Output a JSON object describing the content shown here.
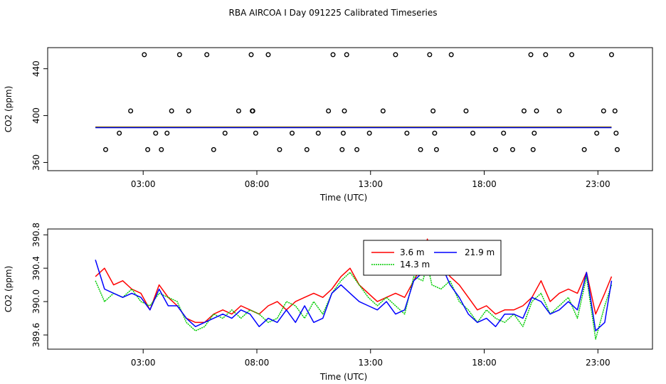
{
  "title": "RBA AIRCOA I  Day 091225  Calibrated Timeseries",
  "chart_data": [
    {
      "type": "scatter",
      "panel": "top",
      "xlabel": "Time (UTC)",
      "ylabel": "CO2 (ppm)",
      "xlim": [
        -1.2,
        25.4
      ],
      "ylim": [
        353,
        458
      ],
      "xticks": [
        3,
        8,
        13,
        18,
        23
      ],
      "xtick_labels": [
        "03:00",
        "08:00",
        "13:00",
        "18:00",
        "23:00"
      ],
      "yticks": [
        360,
        400,
        440
      ],
      "ytick_labels": [
        "360",
        "400",
        "440"
      ],
      "baseline": {
        "value": 390,
        "x_range": [
          0.9,
          23.6
        ],
        "colors": [
          "#ff0000",
          "#00cc00",
          "#0000ff"
        ]
      },
      "points": {
        "x": [
          1.35,
          1.95,
          2.45,
          3.05,
          3.2,
          3.55,
          3.8,
          4.05,
          4.25,
          4.6,
          5.0,
          5.8,
          6.1,
          6.6,
          7.2,
          7.75,
          7.8,
          7.82,
          7.95,
          8.5,
          9.0,
          9.55,
          10.2,
          10.7,
          11.15,
          11.35,
          11.75,
          11.8,
          11.85,
          11.95,
          12.4,
          12.95,
          13.55,
          14.1,
          14.6,
          15.2,
          15.6,
          15.75,
          15.82,
          15.9,
          16.55,
          17.2,
          17.5,
          18.5,
          18.85,
          19.25,
          19.75,
          20.05,
          20.15,
          20.2,
          20.3,
          20.7,
          21.3,
          21.85,
          22.4,
          22.95,
          23.25,
          23.6,
          23.75,
          23.8,
          23.85
        ],
        "y": [
          371,
          385,
          404,
          452,
          371,
          385,
          371,
          385,
          404,
          452,
          404,
          452,
          371,
          385,
          404,
          452,
          404,
          404,
          385,
          452,
          371,
          385,
          371,
          385,
          404,
          452,
          371,
          385,
          404,
          452,
          371,
          385,
          404,
          452,
          385,
          371,
          452,
          404,
          385,
          371,
          452,
          404,
          385,
          371,
          385,
          371,
          404,
          452,
          371,
          385,
          404,
          452,
          404,
          452,
          371,
          385,
          404,
          452,
          404,
          385,
          371
        ]
      }
    },
    {
      "type": "line",
      "panel": "bottom",
      "xlabel": "Time (UTC)",
      "ylabel": "CO2 (ppm)",
      "xlim": [
        -1.2,
        25.4
      ],
      "ylim": [
        389.43,
        390.87
      ],
      "xticks": [
        3,
        8,
        13,
        18,
        23
      ],
      "xtick_labels": [
        "03:00",
        "08:00",
        "13:00",
        "18:00",
        "23:00"
      ],
      "yticks": [
        389.6,
        390.0,
        390.4,
        390.8
      ],
      "ytick_labels": [
        "389.6",
        "390.0",
        "390.4",
        "390.8"
      ],
      "legend": {
        "placement": "top-center",
        "entries": [
          "3.6 m",
          "14.3 m",
          "21.9 m"
        ]
      },
      "series": [
        {
          "name": "3.6 m",
          "color": "#ff0000",
          "x": [
            0.9,
            1.3,
            1.7,
            2.1,
            2.5,
            2.9,
            3.3,
            3.7,
            4.1,
            4.5,
            4.9,
            5.3,
            5.7,
            6.1,
            6.5,
            6.9,
            7.3,
            7.7,
            8.1,
            8.5,
            8.9,
            9.3,
            9.7,
            10.1,
            10.5,
            10.9,
            11.3,
            11.7,
            12.1,
            12.5,
            12.9,
            13.3,
            13.7,
            14.1,
            14.5,
            14.9,
            15.3,
            15.5,
            15.7,
            16.1,
            16.5,
            16.9,
            17.3,
            17.7,
            18.1,
            18.5,
            18.9,
            19.3,
            19.7,
            20.1,
            20.5,
            20.9,
            21.3,
            21.7,
            22.1,
            22.5,
            22.9,
            23.3,
            23.6
          ],
          "y": [
            390.3,
            390.4,
            390.2,
            390.25,
            390.15,
            390.1,
            389.9,
            390.2,
            390.05,
            389.95,
            389.8,
            389.75,
            389.75,
            389.85,
            389.9,
            389.85,
            389.95,
            389.9,
            389.85,
            389.95,
            390.0,
            389.9,
            390.0,
            390.05,
            390.1,
            390.05,
            390.15,
            390.3,
            390.4,
            390.2,
            390.1,
            390.0,
            390.05,
            390.1,
            390.05,
            390.25,
            390.45,
            390.75,
            390.5,
            390.45,
            390.3,
            390.2,
            390.05,
            389.9,
            389.95,
            389.85,
            389.9,
            389.9,
            389.95,
            390.05,
            390.25,
            390.0,
            390.1,
            390.15,
            390.1,
            390.35,
            389.85,
            390.1,
            390.3
          ]
        },
        {
          "name": "14.3 m",
          "color": "#00cc00",
          "x": [
            0.9,
            1.3,
            1.7,
            2.1,
            2.5,
            2.9,
            3.3,
            3.7,
            4.1,
            4.5,
            4.9,
            5.3,
            5.7,
            6.1,
            6.5,
            6.9,
            7.3,
            7.7,
            8.1,
            8.5,
            8.9,
            9.3,
            9.7,
            10.1,
            10.5,
            10.9,
            11.3,
            11.7,
            12.1,
            12.5,
            12.9,
            13.3,
            13.7,
            14.1,
            14.5,
            14.9,
            15.3,
            15.5,
            15.7,
            16.1,
            16.5,
            16.9,
            17.3,
            17.7,
            18.1,
            18.5,
            18.9,
            19.3,
            19.7,
            20.1,
            20.5,
            20.9,
            21.3,
            21.7,
            22.1,
            22.5,
            22.9,
            23.3,
            23.6
          ],
          "y": [
            390.25,
            390.0,
            390.1,
            390.05,
            390.15,
            390.0,
            389.95,
            390.1,
            390.05,
            390.0,
            389.75,
            389.65,
            389.7,
            389.85,
            389.8,
            389.9,
            389.8,
            389.9,
            389.85,
            389.75,
            389.8,
            390.0,
            389.95,
            389.8,
            390.0,
            389.85,
            390.1,
            390.25,
            390.35,
            390.2,
            390.05,
            389.95,
            390.05,
            389.95,
            389.85,
            390.3,
            390.25,
            390.45,
            390.2,
            390.15,
            390.25,
            390.0,
            389.9,
            389.75,
            389.9,
            389.8,
            389.75,
            389.85,
            389.7,
            390.0,
            390.1,
            389.85,
            389.95,
            390.05,
            389.8,
            390.3,
            389.55,
            389.95,
            390.2
          ]
        },
        {
          "name": "21.9 m",
          "color": "#0000ff",
          "x": [
            0.9,
            1.3,
            1.7,
            2.1,
            2.5,
            2.9,
            3.3,
            3.7,
            4.1,
            4.5,
            4.9,
            5.3,
            5.7,
            6.1,
            6.5,
            6.9,
            7.3,
            7.7,
            8.1,
            8.5,
            8.9,
            9.3,
            9.7,
            10.1,
            10.5,
            10.9,
            11.3,
            11.7,
            12.1,
            12.5,
            12.9,
            13.3,
            13.7,
            14.1,
            14.5,
            14.9,
            15.3,
            15.5,
            15.7,
            16.1,
            16.5,
            16.9,
            17.3,
            17.7,
            18.1,
            18.5,
            18.9,
            19.3,
            19.7,
            20.1,
            20.5,
            20.9,
            21.3,
            21.7,
            22.1,
            22.5,
            22.9,
            23.3,
            23.6
          ],
          "y": [
            390.5,
            390.15,
            390.1,
            390.05,
            390.1,
            390.05,
            389.9,
            390.15,
            389.95,
            389.95,
            389.8,
            389.7,
            389.75,
            389.8,
            389.85,
            389.8,
            389.9,
            389.85,
            389.7,
            389.8,
            389.75,
            389.9,
            389.75,
            389.95,
            389.75,
            389.8,
            390.1,
            390.2,
            390.1,
            390.0,
            389.95,
            389.9,
            390.0,
            389.85,
            389.9,
            390.25,
            390.35,
            390.6,
            390.35,
            390.45,
            390.2,
            390.05,
            389.85,
            389.75,
            389.8,
            389.7,
            389.85,
            389.85,
            389.8,
            390.05,
            390.0,
            389.85,
            389.9,
            390.0,
            389.9,
            390.35,
            389.65,
            389.75,
            390.25
          ]
        }
      ]
    }
  ]
}
